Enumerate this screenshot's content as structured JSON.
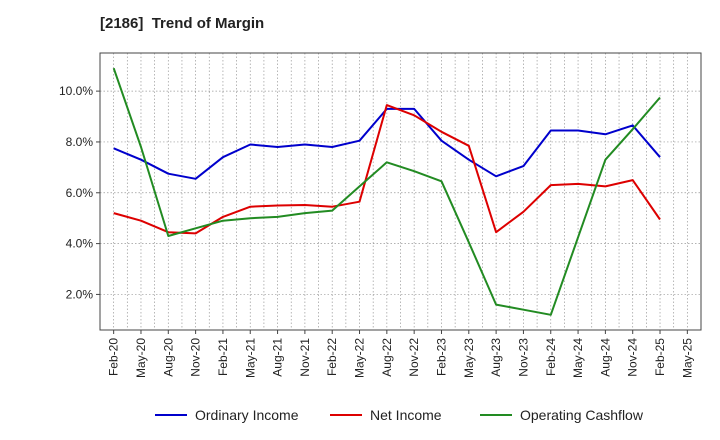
{
  "chart_data": {
    "type": "line",
    "title": "[2186]  Trend of Margin",
    "categories": [
      "Feb-20",
      "May-20",
      "Aug-20",
      "Nov-20",
      "Feb-21",
      "May-21",
      "Aug-21",
      "Nov-21",
      "Feb-22",
      "May-22",
      "Aug-22",
      "Nov-22",
      "Feb-23",
      "May-23",
      "Aug-23",
      "Nov-23",
      "Feb-24",
      "May-24",
      "Aug-24",
      "Nov-24",
      "Feb-25",
      "May-25"
    ],
    "y_ticks": [
      2.0,
      4.0,
      6.0,
      8.0,
      10.0
    ],
    "y_tick_labels": [
      "2.0%",
      "4.0%",
      "6.0%",
      "8.0%",
      "10.0%"
    ],
    "ylim": [
      0.6,
      11.5
    ],
    "grid": true,
    "legend_position": "bottom",
    "series": [
      {
        "name": "Ordinary Income",
        "color": "#0000cc",
        "values": [
          7.75,
          7.3,
          6.75,
          6.55,
          7.4,
          7.9,
          7.8,
          7.9,
          7.8,
          8.05,
          9.3,
          9.3,
          8.05,
          7.3,
          6.65,
          7.05,
          8.45,
          8.45,
          8.3,
          8.65,
          7.4,
          null
        ]
      },
      {
        "name": "Net Income",
        "color": "#dd0000",
        "values": [
          5.2,
          4.9,
          4.45,
          4.4,
          5.05,
          5.45,
          5.5,
          5.52,
          5.45,
          5.65,
          9.45,
          9.05,
          8.4,
          7.85,
          4.45,
          5.25,
          6.3,
          6.35,
          6.25,
          6.5,
          4.95,
          null
        ]
      },
      {
        "name": "Operating Cashflow",
        "color": "#228b22",
        "values": [
          10.9,
          7.8,
          4.3,
          4.6,
          4.9,
          5.0,
          5.05,
          5.2,
          5.3,
          6.25,
          7.2,
          6.85,
          6.45,
          4.05,
          1.6,
          1.4,
          1.2,
          4.25,
          7.3,
          8.5,
          9.75,
          null
        ]
      }
    ]
  }
}
